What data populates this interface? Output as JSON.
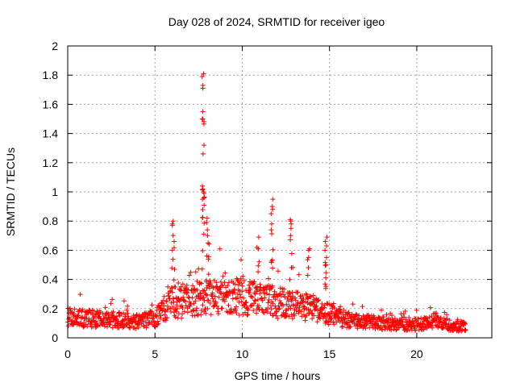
{
  "chart_data": {
    "type": "scatter",
    "title": "Day 028 of 2024, SRMTID for receiver igeo",
    "xlabel": "GPS time / hours",
    "ylabel": "SRMTID / TECUs",
    "xlim": [
      0,
      24.3
    ],
    "ylim": [
      0,
      2
    ],
    "x_ticks": [
      0,
      5,
      10,
      15,
      20
    ],
    "y_ticks": [
      0,
      0.2,
      0.4,
      0.6,
      0.8,
      1,
      1.2,
      1.4,
      1.6,
      1.8,
      2
    ],
    "x_tick_labels": [
      "0",
      "5",
      "10",
      "15",
      "20"
    ],
    "y_tick_labels": [
      "0",
      "0.2",
      "0.4",
      "0.6",
      "0.8",
      "1",
      "1.2",
      "1.4",
      "1.6",
      "1.8",
      "2"
    ],
    "grid": true,
    "marker": "+",
    "marker_color": "#ff0000",
    "series": [
      {
        "name": "SRMTID",
        "x_range": [
          0,
          22.8
        ],
        "baseline_profile": [
          [
            0,
            0.14
          ],
          [
            1,
            0.13
          ],
          [
            2,
            0.13
          ],
          [
            3,
            0.12
          ],
          [
            4,
            0.11
          ],
          [
            5,
            0.13
          ],
          [
            5.5,
            0.2
          ],
          [
            6,
            0.24
          ],
          [
            7,
            0.25
          ],
          [
            8,
            0.27
          ],
          [
            9,
            0.28
          ],
          [
            10,
            0.28
          ],
          [
            11,
            0.26
          ],
          [
            12,
            0.24
          ],
          [
            13,
            0.22
          ],
          [
            14,
            0.2
          ],
          [
            15,
            0.16
          ],
          [
            16,
            0.12
          ],
          [
            17,
            0.11
          ],
          [
            18,
            0.1
          ],
          [
            19,
            0.09
          ],
          [
            20,
            0.09
          ],
          [
            21,
            0.12
          ],
          [
            22,
            0.08
          ],
          [
            22.8,
            0.08
          ]
        ],
        "spikes": [
          {
            "x": 7.75,
            "values": [
              1.81,
              1.79,
              1.73,
              1.71,
              1.55,
              1.5,
              1.32,
              1.26,
              1.04,
              1.02,
              1.0,
              0.99,
              0.95
            ]
          },
          {
            "x": 6.05,
            "values": [
              0.8,
              0.78,
              0.77,
              0.66,
              0.6
            ]
          },
          {
            "x": 8.0,
            "values": [
              0.82,
              0.79,
              0.74,
              0.7,
              0.65
            ]
          },
          {
            "x": 10.9,
            "values": [
              0.69,
              0.62,
              0.61
            ]
          },
          {
            "x": 11.7,
            "values": [
              0.95,
              0.9,
              0.88,
              0.85,
              0.78,
              0.74
            ]
          },
          {
            "x": 12.8,
            "values": [
              0.81,
              0.8,
              0.78,
              0.75,
              0.7
            ]
          },
          {
            "x": 13.8,
            "values": [
              0.61,
              0.6,
              0.55
            ]
          },
          {
            "x": 14.8,
            "values": [
              0.69,
              0.66,
              0.63,
              0.6,
              0.55,
              0.5
            ]
          }
        ]
      }
    ]
  }
}
